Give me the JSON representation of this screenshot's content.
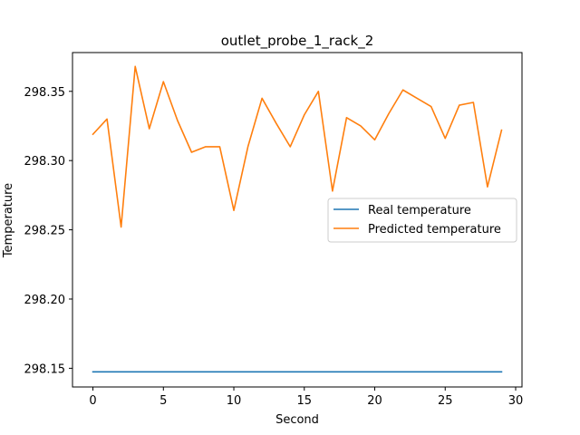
{
  "chart_data": {
    "type": "line",
    "title": "outlet_probe_1_rack_2",
    "xlabel": "Second",
    "ylabel": "Temperature",
    "xlim": [
      -1.45,
      30.45
    ],
    "ylim": [
      298.1365,
      298.378
    ],
    "xticks": [
      0,
      5,
      10,
      15,
      20,
      25,
      30
    ],
    "yticks": [
      298.15,
      298.2,
      298.25,
      298.3,
      298.35
    ],
    "ytick_labels": [
      "298.15",
      "298.20",
      "298.25",
      "298.30",
      "298.35"
    ],
    "grid": false,
    "legend_position": "center-right",
    "x": [
      0,
      1,
      2,
      3,
      4,
      5,
      6,
      7,
      8,
      9,
      10,
      11,
      12,
      13,
      14,
      15,
      16,
      17,
      18,
      19,
      20,
      21,
      22,
      23,
      24,
      25,
      26,
      27,
      28,
      29
    ],
    "series": [
      {
        "name": "Real temperature",
        "color": "#1f77b4",
        "values": [
          298.1474,
          298.1474,
          298.1474,
          298.1474,
          298.1474,
          298.1474,
          298.1474,
          298.1474,
          298.1474,
          298.1474,
          298.1474,
          298.1474,
          298.1474,
          298.1474,
          298.1474,
          298.1474,
          298.1474,
          298.1474,
          298.1474,
          298.1474,
          298.1474,
          298.1474,
          298.1474,
          298.1474,
          298.1474,
          298.1474,
          298.1474,
          298.1474,
          298.1474,
          298.1474
        ]
      },
      {
        "name": "Predicted temperature",
        "color": "#ff7f0e",
        "values": [
          298.319,
          298.33,
          298.252,
          298.368,
          298.323,
          298.357,
          298.329,
          298.306,
          298.31,
          298.31,
          298.264,
          298.31,
          298.345,
          298.327,
          298.31,
          298.333,
          298.35,
          298.278,
          298.331,
          298.325,
          298.315,
          298.334,
          298.351,
          298.345,
          298.339,
          298.316,
          298.34,
          298.342,
          298.281,
          298.322
        ]
      }
    ]
  }
}
